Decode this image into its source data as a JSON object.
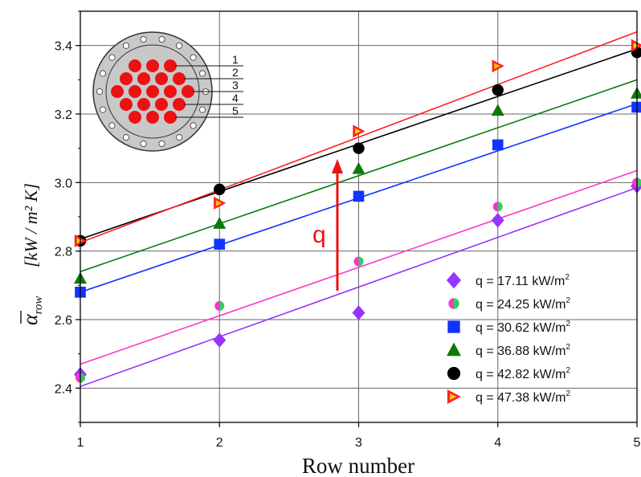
{
  "chart_data": {
    "type": "scatter",
    "title": "",
    "xlabel": "Row number",
    "ylabel": {
      "symbol": "α",
      "subscript": "row",
      "units": "[kW / m² K]"
    },
    "xlim": [
      1,
      5
    ],
    "ylim": [
      2.3,
      3.5
    ],
    "x_ticks": [
      "1",
      "2",
      "3",
      "4",
      "5"
    ],
    "y_ticks": [
      "2.4",
      "2.6",
      "2.8",
      "3.0",
      "3.2",
      "3.4"
    ],
    "grid": true,
    "legend_position": "bottom-right",
    "x": [
      1,
      2,
      3,
      4,
      5
    ],
    "series": [
      {
        "name": "q = 17.11 kW/m",
        "sup": "2",
        "marker": "diamond",
        "color": "#9933ff",
        "values": [
          2.44,
          2.54,
          2.62,
          2.89,
          2.99
        ],
        "fit": [
          2.405,
          2.985
        ]
      },
      {
        "name": "q = 24.25 kW/m",
        "sup": "2",
        "marker": "half-circle",
        "color": "#ff33cc",
        "color2": "#33cc66",
        "values": [
          2.43,
          2.64,
          2.77,
          2.93,
          3.0
        ],
        "fit": [
          2.47,
          3.035
        ]
      },
      {
        "name": "q = 30.62 kW/m",
        "sup": "2",
        "marker": "square",
        "color": "#1133ff",
        "values": [
          2.68,
          2.82,
          2.96,
          3.11,
          3.22
        ],
        "fit": [
          2.68,
          3.23
        ]
      },
      {
        "name": "q = 36.88 kW/m",
        "sup": "2",
        "marker": "triangle-up",
        "color": "#0a7a0a",
        "values": [
          2.72,
          2.88,
          3.04,
          3.21,
          3.26
        ],
        "fit": [
          2.74,
          3.3
        ]
      },
      {
        "name": "q = 42.82 kW/m",
        "sup": "2",
        "marker": "circle",
        "color": "#000000",
        "values": [
          2.83,
          2.98,
          3.1,
          3.27,
          3.38
        ],
        "fit": [
          2.835,
          3.39
        ]
      },
      {
        "name": "q = 47.38 kW/m",
        "sup": "2",
        "marker": "triangle-right",
        "color": "#ff2222",
        "color2": "#ffd000",
        "values": [
          2.83,
          2.94,
          3.15,
          3.34,
          3.4
        ],
        "fit": [
          2.825,
          3.44
        ]
      }
    ],
    "annotation": {
      "text": "q",
      "color": "#ee1111"
    },
    "inset": {
      "row_labels": [
        "1",
        "2",
        "3",
        "4",
        "5"
      ],
      "tube_rows": [
        3,
        4,
        5,
        4,
        3
      ]
    }
  }
}
